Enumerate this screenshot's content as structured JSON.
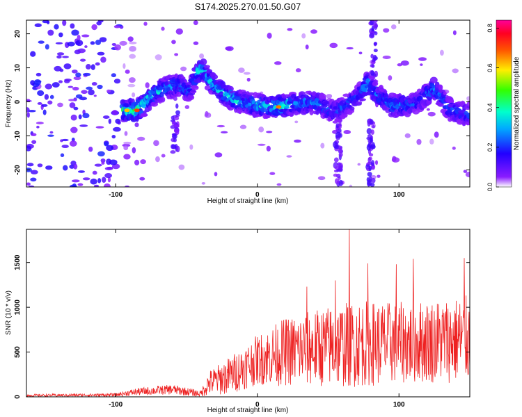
{
  "chart_data": [
    {
      "type": "heatmap",
      "title": "S174.2025.270.01.50.G07",
      "xlabel": "Height of straight line (km)",
      "ylabel": "Frequency (Hz)",
      "xlim": [
        -163,
        150
      ],
      "ylim": [
        -25,
        24
      ],
      "xticks": [
        -100,
        0,
        100
      ],
      "xtick_labels": [
        "-100",
        "0",
        "100"
      ],
      "yticks": [
        -20,
        -10,
        0,
        10,
        20
      ],
      "ytick_labels": [
        "-20",
        "-10",
        "0",
        "10",
        "20"
      ],
      "colorbar": {
        "label": "Normalized spectral amplitude",
        "range": [
          0.0,
          0.84
        ],
        "ticks": [
          0.0,
          0.2,
          0.4,
          0.6,
          0.8
        ],
        "tick_labels": [
          "0.0",
          "0.2",
          "0.4",
          "0.6",
          "0.8"
        ],
        "colormap": "rainbow (violet-blue-cyan-green-yellow-red-magenta)"
      },
      "ridge": [
        {
          "x": -92,
          "f": -2.5,
          "amp": 0.45
        },
        {
          "x": -85,
          "f": -2.5,
          "amp": 0.55
        },
        {
          "x": -80,
          "f": -1.0,
          "amp": 0.4
        },
        {
          "x": -75,
          "f": 1.5,
          "amp": 0.4
        },
        {
          "x": -70,
          "f": 3.0,
          "amp": 0.35
        },
        {
          "x": -62,
          "f": 4.5,
          "amp": 0.35
        },
        {
          "x": -55,
          "f": 5.0,
          "amp": 0.3
        },
        {
          "x": -48,
          "f": 3.0,
          "amp": 0.25
        },
        {
          "x": -42,
          "f": 9.0,
          "amp": 0.4
        },
        {
          "x": -38,
          "f": 9.5,
          "amp": 0.35
        },
        {
          "x": -35,
          "f": 7.0,
          "amp": 0.35
        },
        {
          "x": -30,
          "f": 4.5,
          "amp": 0.35
        },
        {
          "x": -25,
          "f": 3.0,
          "amp": 0.4
        },
        {
          "x": -20,
          "f": 1.5,
          "amp": 0.35
        },
        {
          "x": -15,
          "f": 0.5,
          "amp": 0.4
        },
        {
          "x": -10,
          "f": 0.0,
          "amp": 0.3
        },
        {
          "x": 0,
          "f": -1.0,
          "amp": 0.4
        },
        {
          "x": 10,
          "f": -1.5,
          "amp": 0.35
        },
        {
          "x": 15,
          "f": -1.5,
          "amp": 0.5
        },
        {
          "x": 25,
          "f": -0.5,
          "amp": 0.3
        },
        {
          "x": 40,
          "f": 0.0,
          "amp": 0.3
        },
        {
          "x": 55,
          "f": -3.0,
          "amp": 0.25
        },
        {
          "x": 70,
          "f": 1.0,
          "amp": 0.25
        },
        {
          "x": 78,
          "f": 5.5,
          "amp": 0.35
        },
        {
          "x": 85,
          "f": 2.0,
          "amp": 0.25
        },
        {
          "x": 95,
          "f": -1.0,
          "amp": 0.3
        },
        {
          "x": 110,
          "f": -1.0,
          "amp": 0.25
        },
        {
          "x": 125,
          "f": 4.0,
          "amp": 0.3
        },
        {
          "x": 135,
          "f": -2.0,
          "amp": 0.25
        },
        {
          "x": 145,
          "f": -3.5,
          "amp": 0.25
        }
      ]
    },
    {
      "type": "line",
      "title": "",
      "xlabel": "Height of straight line (km)",
      "ylabel": "SNR (10 * v/v)",
      "xlim": [
        -163,
        150
      ],
      "ylim": [
        0,
        1870
      ],
      "xticks": [
        -100,
        0,
        100
      ],
      "xtick_labels": [
        "-100",
        "0",
        "100"
      ],
      "yticks": [
        0,
        500,
        1000,
        1500
      ],
      "ytick_labels": [
        "0",
        "500",
        "1000",
        "1500"
      ],
      "series": [
        {
          "name": "SNR",
          "color": "#ee2222",
          "envelope": [
            {
              "x": -163,
              "base": 10,
              "amp": 20
            },
            {
              "x": -100,
              "base": 15,
              "amp": 25
            },
            {
              "x": -85,
              "base": 40,
              "amp": 60
            },
            {
              "x": -60,
              "base": 60,
              "amp": 80
            },
            {
              "x": -40,
              "base": 20,
              "amp": 50
            },
            {
              "x": -34,
              "base": 100,
              "amp": 200
            },
            {
              "x": -20,
              "base": 150,
              "amp": 300
            },
            {
              "x": 0,
              "base": 300,
              "amp": 400
            },
            {
              "x": 20,
              "base": 350,
              "amp": 550
            },
            {
              "x": 50,
              "base": 380,
              "amp": 650
            },
            {
              "x": 70,
              "base": 400,
              "amp": 700
            },
            {
              "x": 100,
              "base": 420,
              "amp": 650
            },
            {
              "x": 150,
              "base": 450,
              "amp": 700
            }
          ],
          "peaks": [
            {
              "x": 65,
              "y": 1870
            },
            {
              "x": 78,
              "y": 1490
            },
            {
              "x": 98,
              "y": 1480
            },
            {
              "x": 110,
              "y": 1540
            },
            {
              "x": 146,
              "y": 1550
            },
            {
              "x": 55,
              "y": 1300
            },
            {
              "x": 35,
              "y": 1230
            }
          ]
        }
      ]
    }
  ]
}
